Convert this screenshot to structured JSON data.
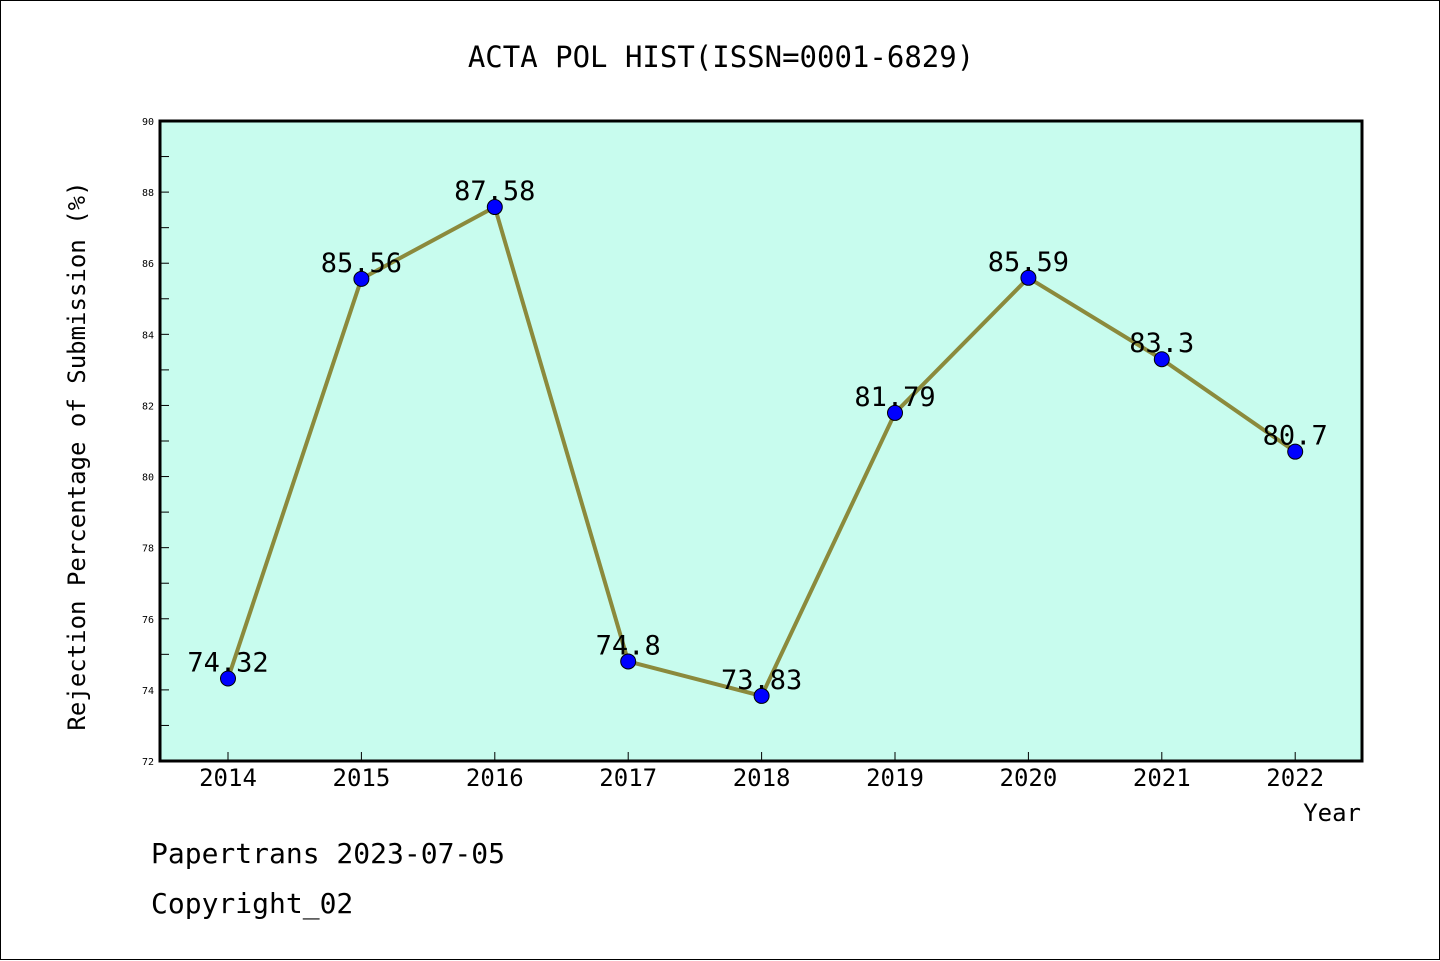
{
  "chart_data": {
    "type": "line",
    "title": "ACTA POL HIST(ISSN=0001-6829)",
    "xlabel": "Year",
    "ylabel": "Rejection Percentage of Submission (%)",
    "categories": [
      "2014",
      "2015",
      "2016",
      "2017",
      "2018",
      "2019",
      "2020",
      "2021",
      "2022"
    ],
    "series": [
      {
        "values": [
          74.32,
          85.56,
          87.58,
          74.8,
          73.83,
          81.79,
          85.59,
          83.3,
          80.7
        ],
        "labels": [
          "74.32",
          "85.56",
          "87.58",
          "74.8",
          "73.83",
          "81.79",
          "85.59",
          "83.3",
          "80.7"
        ]
      }
    ],
    "ylim": [
      72,
      90
    ],
    "yticks": [
      "72",
      "74",
      "76",
      "78",
      "80",
      "82",
      "84",
      "86",
      "88",
      "90"
    ],
    "grid": false,
    "colors": {
      "plot_background": "#c8fcee",
      "line": "#8b8a3c",
      "marker": "#0000ff"
    }
  },
  "footer": {
    "line1": "Papertrans 2023-07-05",
    "line2": "Copyright_02"
  }
}
